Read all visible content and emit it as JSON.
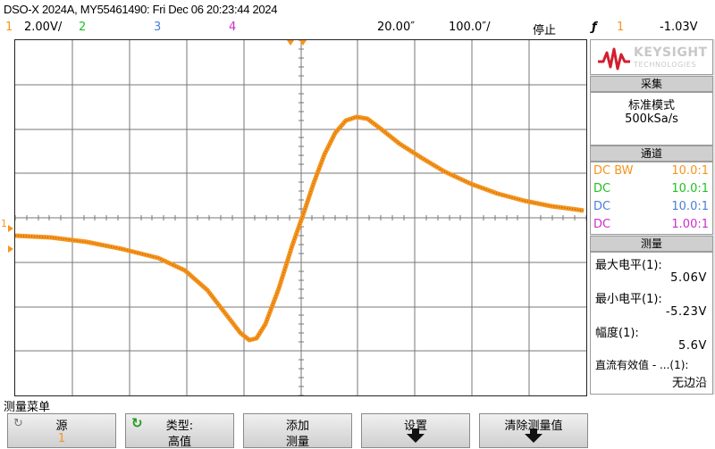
{
  "title": "DSO-X 2024A, MY55461490: Fri Dec 06 20:23:44 2024",
  "status": {
    "ch1_num": "1",
    "ch1_scale": "2.00V/",
    "ch2_num": "2",
    "ch3_num": "3",
    "ch4_num": "4",
    "time_scale": "20.00″",
    "sample_rate_label": "100.0″/",
    "run_state": "停止",
    "trigger_symbol": "ƒ",
    "trigger_ch": "1",
    "trigger_level": "-1.03V"
  },
  "colors": {
    "ch1": "#f7941d",
    "ch2": "#22c022",
    "ch3": "#4a7fd8",
    "ch4": "#cc2fcc",
    "brand": "#d11f2f"
  },
  "brand": {
    "name": "KEYSIGHT",
    "sub": "TECHNOLOGIES"
  },
  "acquisition": {
    "header": "采集",
    "mode": "标准模式",
    "rate": "500kSa/s"
  },
  "channels": {
    "header": "通道",
    "rows": [
      {
        "coupling": "DC BW",
        "probe": "10.0:1"
      },
      {
        "coupling": "DC",
        "probe": "10.0:1"
      },
      {
        "coupling": "DC",
        "probe": "10.0:1"
      },
      {
        "coupling": "DC",
        "probe": "1.00:1"
      }
    ]
  },
  "measure": {
    "header": "测量",
    "max_label": "最大电平(1):",
    "max_value": "5.06V",
    "min_label": "最小电平(1):",
    "min_value": "-5.23V",
    "amp_label": "幅度(1):",
    "amp_value": "5.6V",
    "dcrms_label": "直流有效值 - ...(1):",
    "dcrms_value": "无边沿"
  },
  "ground_marker": "1",
  "menu_label": "测量菜单",
  "softkeys": [
    {
      "line1": "源",
      "line2": "1"
    },
    {
      "line1": "类型:",
      "line2": "高值"
    },
    {
      "line1": "添加",
      "line2": "测量"
    },
    {
      "line1": "设置",
      "line2": ""
    },
    {
      "line1": "清除测量值",
      "line2": ""
    }
  ]
}
